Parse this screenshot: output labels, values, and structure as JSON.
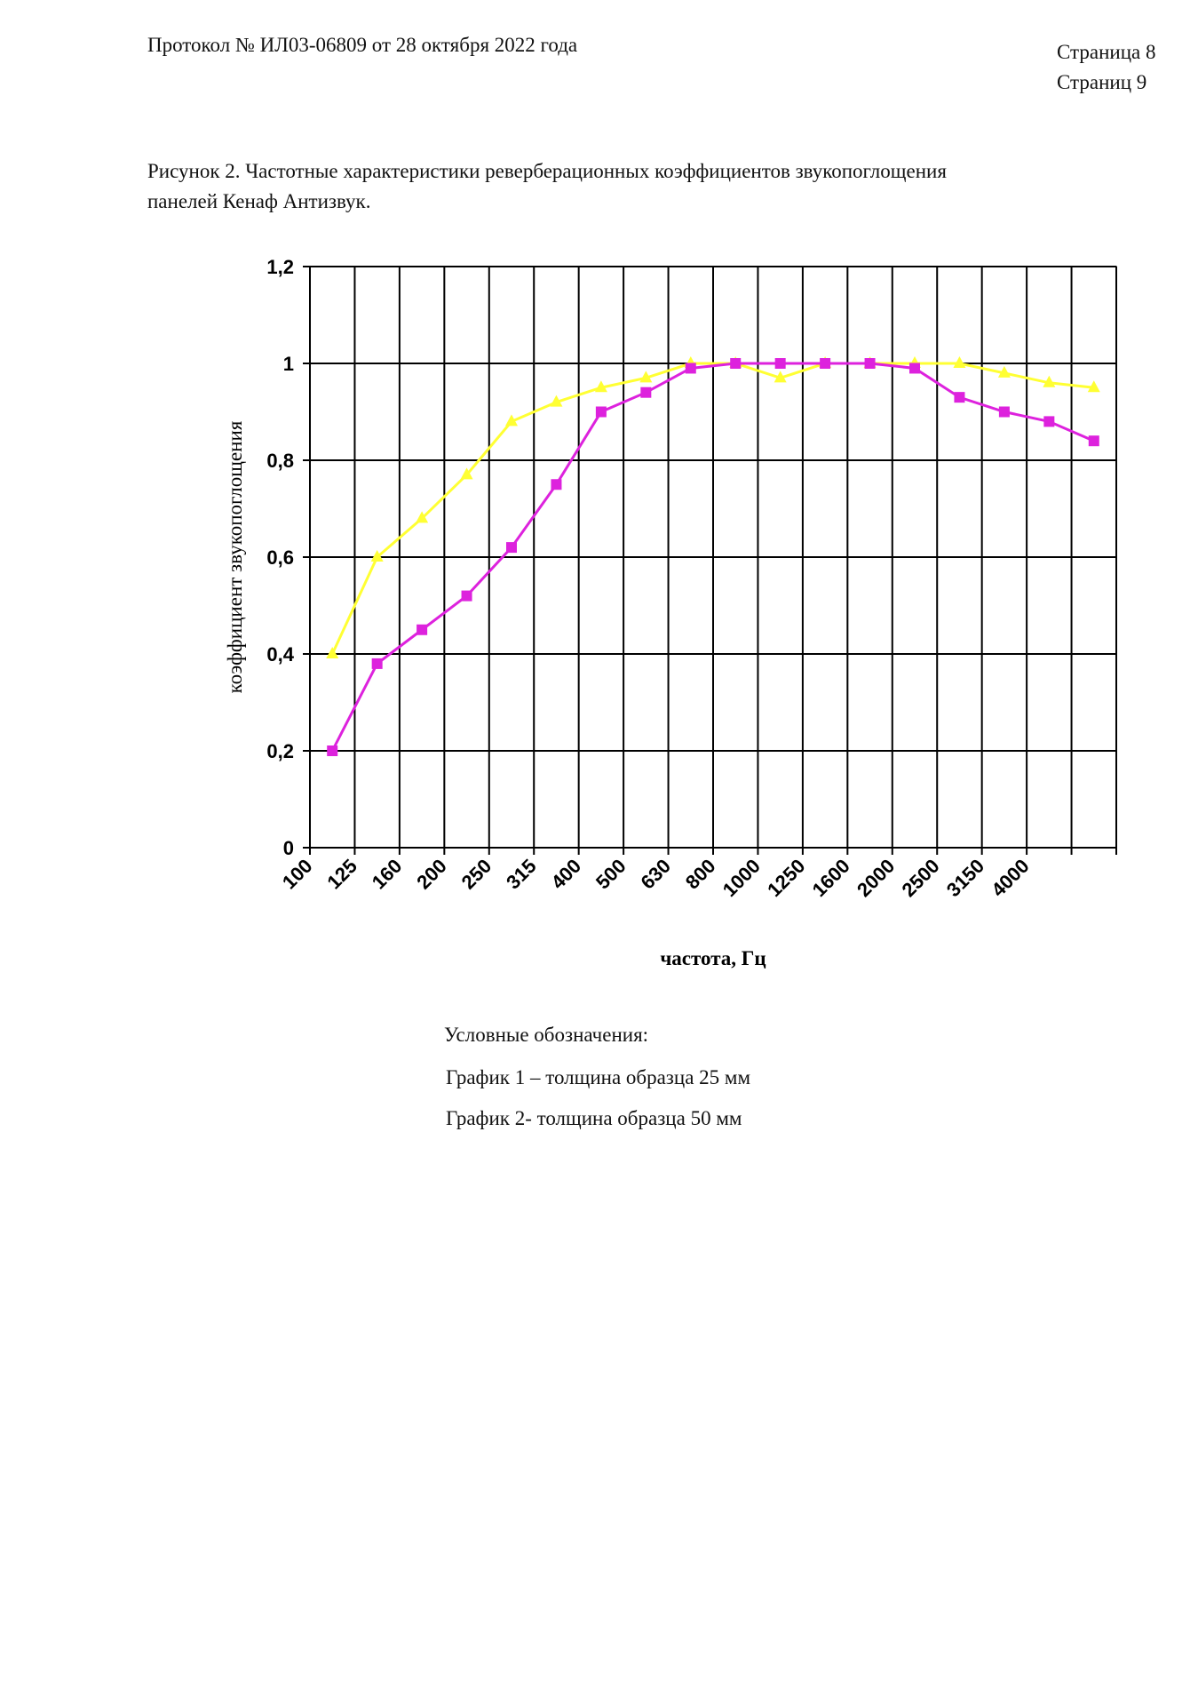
{
  "header": {
    "protocol": "Протокол №  ИЛ03-06809 от 28 октября 2022 года",
    "page": "Страница 8",
    "pages": "Страниц  9"
  },
  "caption": [
    "Рисунок 2. Частотные характеристики реверберационных коэффициентов звукопоглощения",
    "панелей  Кенаф Антизвук."
  ],
  "chart_data": {
    "type": "line",
    "x_label": "частота, Гц",
    "y_label": "коэффициент звукопоглощения",
    "categories": [
      "100",
      "125",
      "160",
      "200",
      "250",
      "315",
      "400",
      "500",
      "630",
      "800",
      "1000",
      "1250",
      "1600",
      "2000",
      "2500",
      "3150",
      "4000",
      null
    ],
    "series": [
      {
        "color": "#ffff33",
        "marker": "triangle",
        "values": [
          0.4,
          0.6,
          0.68,
          0.77,
          0.88,
          0.92,
          0.95,
          0.97,
          1.0,
          1.0,
          0.97,
          1.0,
          1.0,
          1.0,
          1.0,
          0.98,
          0.96,
          0.95
        ]
      },
      {
        "color": "#dd22dd",
        "marker": "square",
        "values": [
          0.2,
          0.38,
          0.45,
          0.52,
          0.62,
          0.75,
          0.9,
          0.94,
          0.99,
          1.0,
          1.0,
          1.0,
          1.0,
          0.99,
          0.93,
          0.9,
          0.88,
          0.84
        ]
      }
    ],
    "ylim": [
      0,
      1.2
    ],
    "yticks": [
      0,
      {
        "value": 0.2,
        "label": "0,2"
      },
      {
        "value": 0.4,
        "label": "0,4"
      },
      {
        "value": 0.6,
        "label": "0,6"
      },
      {
        "value": 0.8,
        "label": "0,8"
      },
      1,
      {
        "value": 1.2,
        "label": "1,2"
      }
    ],
    "grid": true
  },
  "legend": {
    "title": "Условные обозначения:",
    "items": [
      "График 1 – толщина образца 25 мм",
      "График 2- толщина образца 50 мм"
    ]
  }
}
